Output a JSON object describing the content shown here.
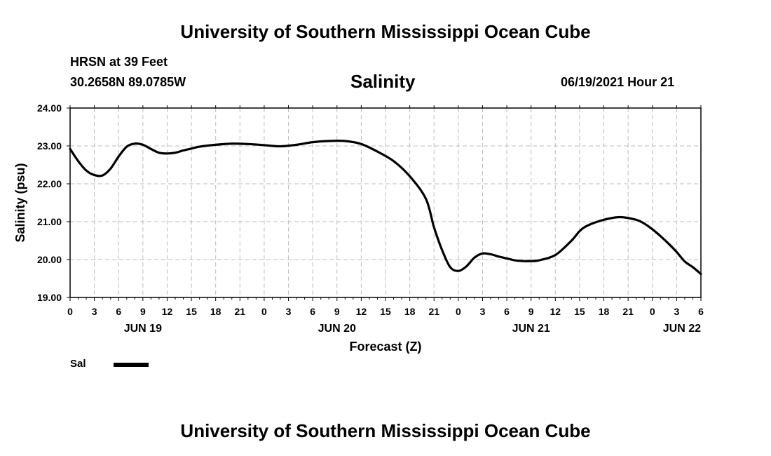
{
  "header": {
    "title": "University of Southern Mississippi Ocean Cube",
    "station": "HRSN at 39 Feet",
    "coords": "30.2658N  89.0785W",
    "variable": "Salinity",
    "date": "06/19/2021 Hour 21"
  },
  "footer": {
    "title": "University of Southern Mississippi Ocean Cube"
  },
  "legend": {
    "label": "Sal"
  },
  "chart_data": {
    "type": "line",
    "title": "Salinity",
    "xlabel": "Forecast (Z)",
    "ylabel": "Salinity (psu)",
    "x_unit": "hours since JUN 19 00Z",
    "xlim": [
      0,
      78
    ],
    "ylim": [
      19,
      24
    ],
    "yticks": [
      19,
      20,
      21,
      22,
      23,
      24
    ],
    "ytick_labels": [
      "19.00",
      "20.00",
      "21.00",
      "22.00",
      "23.00",
      "24.00"
    ],
    "xticks": [
      0,
      3,
      6,
      9,
      12,
      15,
      18,
      21,
      24,
      27,
      30,
      33,
      36,
      39,
      42,
      45,
      48,
      51,
      54,
      57,
      60,
      63,
      66,
      69,
      72,
      75,
      78
    ],
    "xtick_labels": [
      "0",
      "3",
      "6",
      "9",
      "12",
      "15",
      "18",
      "21",
      "0",
      "3",
      "6",
      "9",
      "12",
      "15",
      "18",
      "21",
      "0",
      "3",
      "6",
      "9",
      "12",
      "15",
      "18",
      "21",
      "0",
      "3",
      "6"
    ],
    "day_labels": [
      {
        "x": 9,
        "label": "JUN 19"
      },
      {
        "x": 33,
        "label": "JUN 20"
      },
      {
        "x": 57,
        "label": "JUN 21"
      },
      {
        "x": 78,
        "label": "JUN 22"
      }
    ],
    "grid": true,
    "series": [
      {
        "name": "Sal",
        "color": "#000000",
        "x": [
          0,
          1,
          2,
          3,
          4,
          5,
          6,
          7,
          8,
          9,
          10,
          11,
          12,
          13,
          14,
          15,
          16,
          18,
          20,
          22,
          24,
          26,
          28,
          30,
          32,
          34,
          36,
          38,
          40,
          42,
          44,
          45,
          46,
          47,
          48,
          49,
          50,
          51,
          52,
          53,
          54,
          55,
          56,
          57,
          58,
          60,
          62,
          63,
          64,
          66,
          68,
          70,
          71,
          72,
          73,
          74,
          75,
          76,
          77,
          78
        ],
        "y": [
          22.92,
          22.6,
          22.35,
          22.23,
          22.22,
          22.4,
          22.72,
          22.98,
          23.06,
          23.03,
          22.92,
          22.82,
          22.8,
          22.82,
          22.88,
          22.93,
          22.98,
          23.03,
          23.06,
          23.05,
          23.02,
          22.99,
          23.03,
          23.1,
          23.13,
          23.13,
          23.05,
          22.85,
          22.6,
          22.2,
          21.6,
          20.85,
          20.25,
          19.8,
          19.7,
          19.82,
          20.05,
          20.16,
          20.14,
          20.08,
          20.03,
          19.98,
          19.96,
          19.96,
          19.98,
          20.12,
          20.5,
          20.75,
          20.9,
          21.05,
          21.12,
          21.05,
          20.95,
          20.8,
          20.62,
          20.42,
          20.2,
          19.95,
          19.8,
          19.62
        ]
      }
    ]
  }
}
